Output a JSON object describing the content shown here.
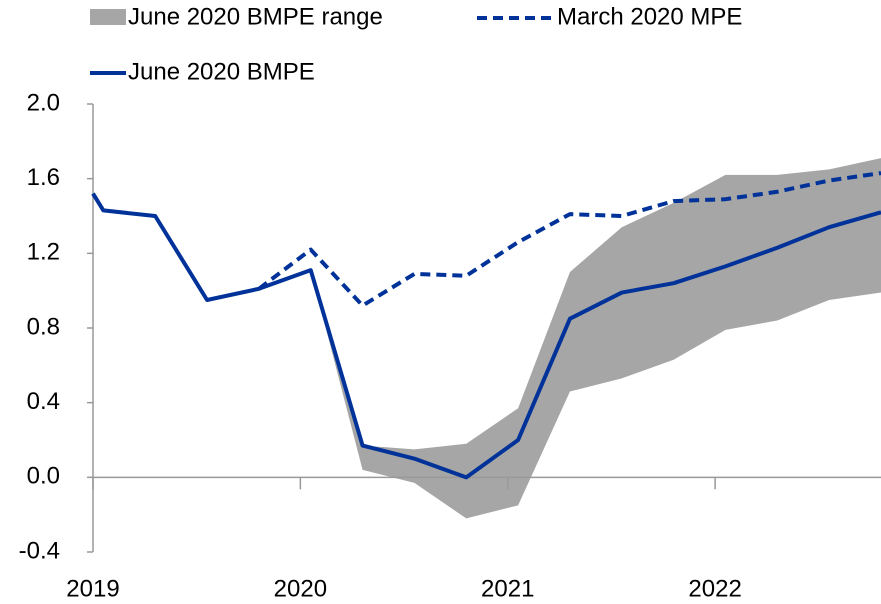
{
  "chart_data": {
    "type": "line",
    "x": [
      2019.0,
      2019.05,
      2019.3,
      2019.55,
      2019.8,
      2020.05,
      2020.3,
      2020.55,
      2020.8,
      2021.05,
      2021.3,
      2021.55,
      2021.8,
      2022.05,
      2022.3,
      2022.55,
      2022.8
    ],
    "range": {
      "name": "June 2020 BMPE range",
      "color": "#a6a6a6",
      "lower": [
        null,
        null,
        null,
        null,
        null,
        1.11,
        0.04,
        -0.03,
        -0.22,
        -0.15,
        0.46,
        0.53,
        0.63,
        0.79,
        0.84,
        0.95,
        0.99
      ],
      "upper": [
        null,
        null,
        null,
        null,
        null,
        1.11,
        0.17,
        0.15,
        0.18,
        0.37,
        1.1,
        1.34,
        1.47,
        1.62,
        1.62,
        1.65,
        1.71
      ]
    },
    "series": [
      {
        "name": "March 2020 MPE",
        "color": "#003299",
        "dashed": true,
        "values": [
          null,
          null,
          null,
          null,
          1.01,
          1.22,
          0.92,
          1.09,
          1.08,
          1.26,
          1.41,
          1.4,
          1.48,
          1.49,
          1.53,
          1.59,
          1.63
        ]
      },
      {
        "name": "June 2020 BMPE",
        "color": "#003299",
        "dashed": false,
        "values": [
          1.52,
          1.43,
          1.4,
          0.95,
          1.01,
          1.11,
          0.17,
          0.1,
          0.0,
          0.2,
          0.85,
          0.99,
          1.04,
          1.13,
          1.23,
          1.34,
          1.42
        ]
      }
    ],
    "xlim": [
      2019,
      2022.8
    ],
    "xticks": [
      2019,
      2020,
      2021,
      2022
    ],
    "ylim": [
      -0.4,
      2.0
    ],
    "yticks": [
      {
        "value": -0.4,
        "label": "-0.4"
      },
      {
        "value": 0,
        "label": "0.0"
      },
      {
        "value": 0.4,
        "label": "0.4"
      },
      {
        "value": 0.8,
        "label": "0.8"
      },
      {
        "value": 1.2,
        "label": "1.2"
      },
      {
        "value": 1.6,
        "label": "1.6"
      },
      {
        "value": 2.0,
        "label": "2.0"
      }
    ]
  }
}
